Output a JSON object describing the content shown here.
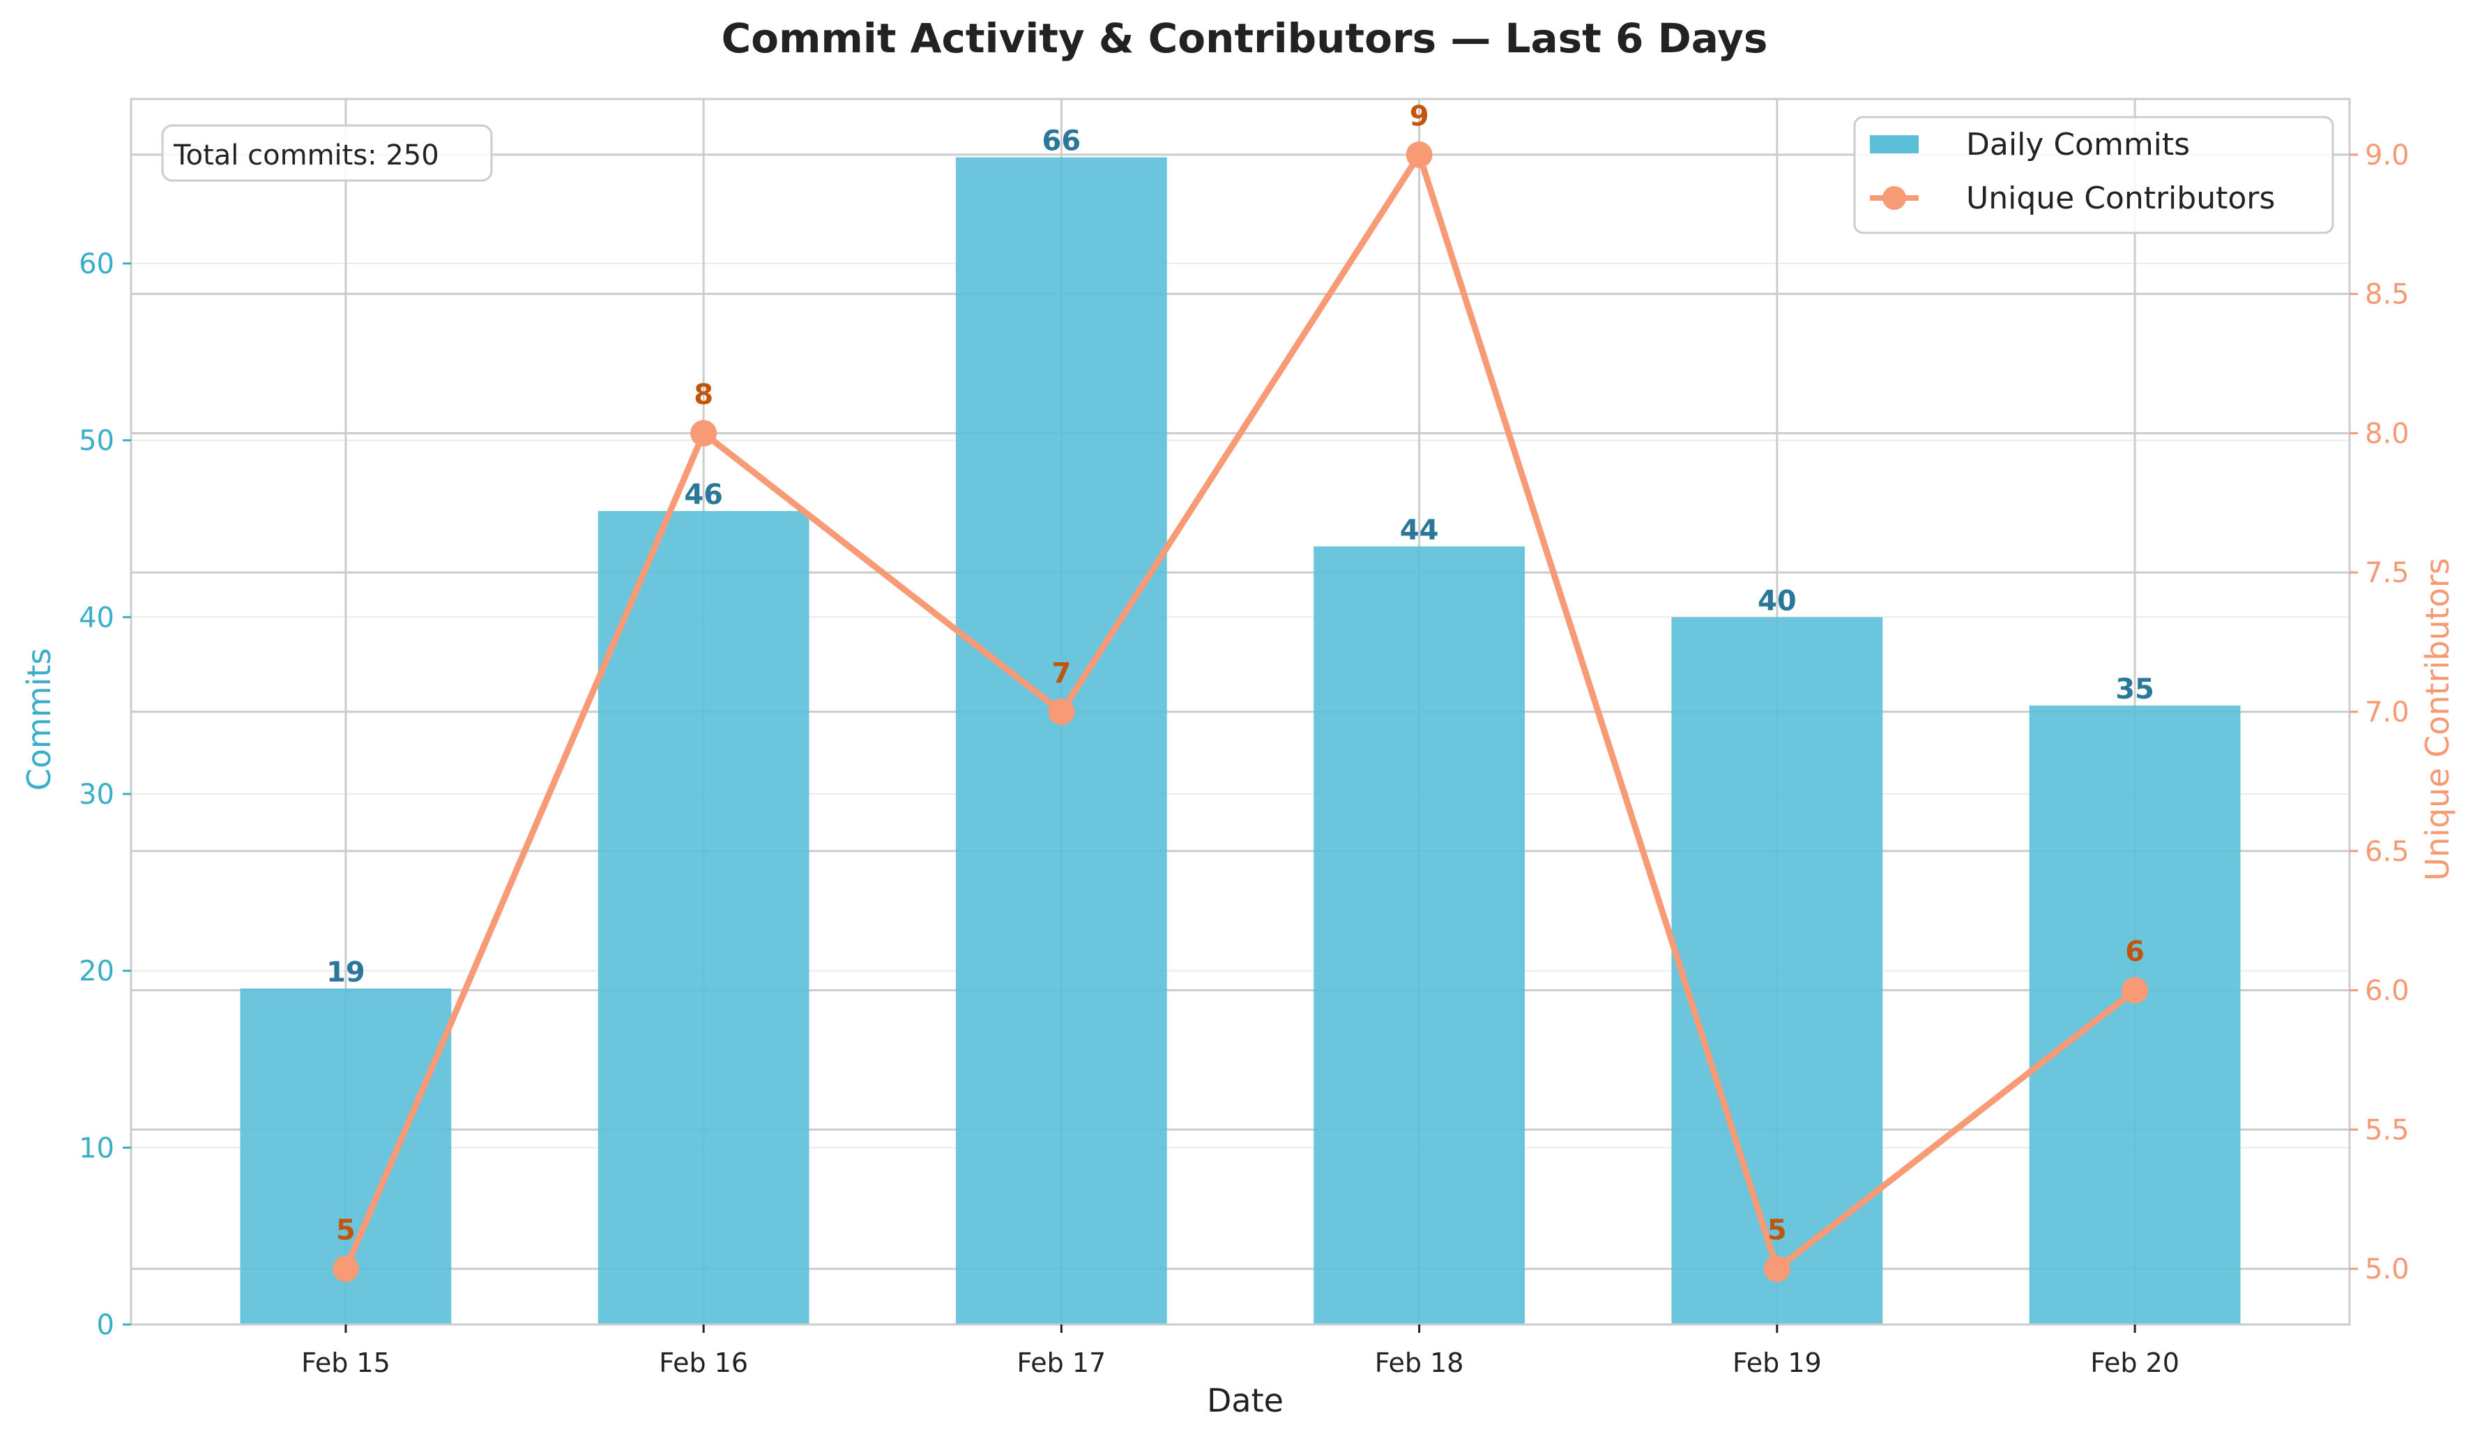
{
  "chart_data": {
    "type": "bar",
    "title": "Commit Activity & Contributors — Last 6 Days",
    "xlabel": "Date",
    "categories": [
      "Feb 15",
      "Feb 16",
      "Feb 17",
      "Feb 18",
      "Feb 19",
      "Feb 20"
    ],
    "series": [
      {
        "name": "Daily Commits",
        "type": "bar",
        "axis": "left",
        "values": [
          19,
          46,
          66,
          44,
          40,
          35
        ],
        "labels": [
          "19",
          "46",
          "66",
          "44",
          "40",
          "35"
        ],
        "color": "#5bbfd8"
      },
      {
        "name": "Unique Contributors",
        "type": "line",
        "axis": "right",
        "values": [
          5,
          8,
          7,
          9,
          5,
          6
        ],
        "labels": [
          "5",
          "8",
          "7",
          "9",
          "5",
          "6"
        ],
        "color": "#f89a76"
      }
    ],
    "left_axis": {
      "label": "Commits",
      "range": [
        0,
        69.3
      ],
      "ticks": [
        0,
        10,
        20,
        30,
        40,
        50,
        60
      ],
      "tick_labels": [
        "0",
        "10",
        "20",
        "30",
        "40",
        "50",
        "60"
      ],
      "color": "#3aaec8"
    },
    "right_axis": {
      "label": "Unique Contributors",
      "range": [
        4.8,
        9.2
      ],
      "ticks": [
        5.0,
        5.5,
        6.0,
        6.5,
        7.0,
        7.5,
        8.0,
        8.5,
        9.0
      ],
      "tick_labels": [
        "5.0",
        "5.5",
        "6.0",
        "6.5",
        "7.0",
        "7.5",
        "8.0",
        "8.5",
        "9.0"
      ],
      "color": "#f59a73"
    },
    "annotation": "Total commits: 250",
    "legend": {
      "position": "top-right",
      "entries": [
        "Daily Commits",
        "Unique Contributors"
      ]
    },
    "grid": true
  }
}
